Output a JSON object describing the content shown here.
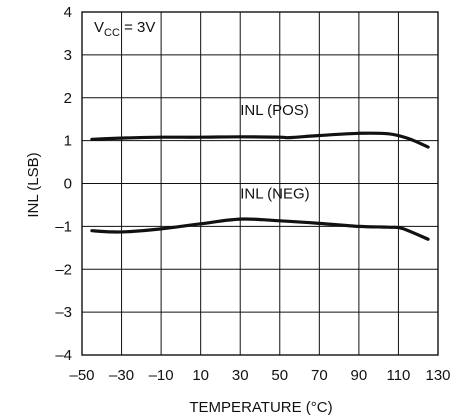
{
  "chart_data": {
    "type": "line",
    "title": "",
    "xlabel": "TEMPERATURE (°C)",
    "ylabel": "INL (LSB)",
    "xlim": [
      -50,
      130
    ],
    "ylim": [
      -4,
      4
    ],
    "x_ticks": [
      -50,
      -30,
      -10,
      10,
      30,
      50,
      70,
      90,
      110,
      130
    ],
    "x_tick_labels": [
      "–50",
      "–30",
      "–10",
      "10",
      "30",
      "50",
      "70",
      "90",
      "110",
      "130"
    ],
    "y_ticks": [
      4,
      3,
      2,
      1,
      0,
      -1,
      -2,
      -3,
      -4
    ],
    "y_tick_labels": [
      "4",
      "3",
      "2",
      "1",
      "0",
      "–1",
      "–2",
      "–3",
      "–4"
    ],
    "grid": true,
    "annotations": {
      "vcc_main": "V",
      "vcc_sub": "CC",
      "vcc_rest": " = 3V"
    },
    "series": [
      {
        "name": "INL (POS)",
        "x": [
          -45,
          -30,
          -10,
          10,
          30,
          50,
          55,
          70,
          90,
          105,
          115,
          125
        ],
        "y": [
          1.03,
          1.06,
          1.08,
          1.08,
          1.09,
          1.08,
          1.07,
          1.12,
          1.17,
          1.16,
          1.05,
          0.85
        ]
      },
      {
        "name": "INL (NEG)",
        "x": [
          -45,
          -35,
          -25,
          -10,
          10,
          30,
          50,
          70,
          90,
          105,
          112,
          125
        ],
        "y": [
          -1.1,
          -1.13,
          -1.12,
          -1.06,
          -0.94,
          -0.83,
          -0.87,
          -0.93,
          -1.0,
          -1.02,
          -1.05,
          -1.3
        ]
      }
    ],
    "series_label_positions": [
      {
        "x": 30,
        "y": 1.6
      },
      {
        "x": 30,
        "y": -0.35
      }
    ],
    "line_color": "#111111",
    "grid_color": "#111111"
  }
}
